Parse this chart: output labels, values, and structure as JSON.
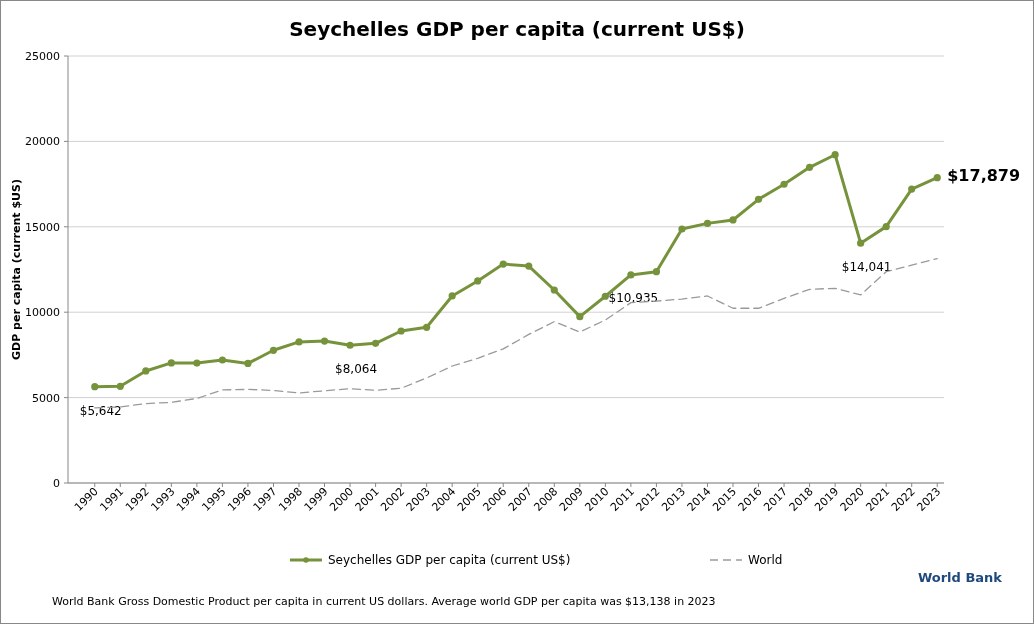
{
  "chart_data": {
    "type": "line",
    "title": "Seychelles GDP per capita (current US$)",
    "ylabel": "GDP per capita (current $US)",
    "categories": [
      "1990",
      "1991",
      "1992",
      "1993",
      "1994",
      "1995",
      "1996",
      "1997",
      "1998",
      "1999",
      "2000",
      "2001",
      "2002",
      "2003",
      "2004",
      "2005",
      "2006",
      "2007",
      "2008",
      "2009",
      "2010",
      "2011",
      "2012",
      "2013",
      "2014",
      "2015",
      "2016",
      "2017",
      "2018",
      "2019",
      "2020",
      "2021",
      "2022",
      "2023"
    ],
    "series": [
      {
        "name": "Seychelles GDP per capita (current US$)",
        "color": "#76933c",
        "marker": "circle",
        "line_style": "solid",
        "values": [
          5642,
          5660,
          6560,
          7030,
          7020,
          7200,
          7000,
          7770,
          8260,
          8310,
          8064,
          8180,
          8900,
          9115,
          10950,
          11830,
          12820,
          12700,
          11300,
          9740,
          10935,
          12180,
          12370,
          14870,
          15200,
          15400,
          16610,
          17490,
          18480,
          19220,
          14041,
          15010,
          17210,
          17879
        ],
        "value_labels": [
          "$5,642",
          null,
          null,
          null,
          null,
          null,
          null,
          null,
          null,
          null,
          "$8,064",
          null,
          null,
          null,
          null,
          null,
          null,
          null,
          null,
          null,
          "$10,935",
          null,
          null,
          null,
          null,
          null,
          null,
          null,
          null,
          null,
          "$14,041",
          null,
          null,
          "$17,879"
        ]
      },
      {
        "name": "World",
        "color": "#9a9a9a",
        "marker": "none",
        "line_style": "dashed",
        "values": [
          4400,
          4450,
          4650,
          4720,
          4950,
          5450,
          5480,
          5420,
          5270,
          5400,
          5520,
          5430,
          5550,
          6150,
          6850,
          7300,
          7850,
          8700,
          9450,
          8840,
          9540,
          10560,
          10650,
          10770,
          10950,
          10230,
          10230,
          10810,
          11340,
          11400,
          11010,
          12370,
          12760,
          13140
        ]
      }
    ],
    "ylim": [
      0,
      25000
    ],
    "yticks": [
      0,
      5000,
      10000,
      15000,
      20000,
      25000
    ],
    "grid": "y",
    "legend": "bottom",
    "annotations": [
      "World Bank",
      "World Bank  Gross Domestic Product per capita in current US dollars.  Average world GDP per capita was $13,138 in 2023"
    ]
  }
}
